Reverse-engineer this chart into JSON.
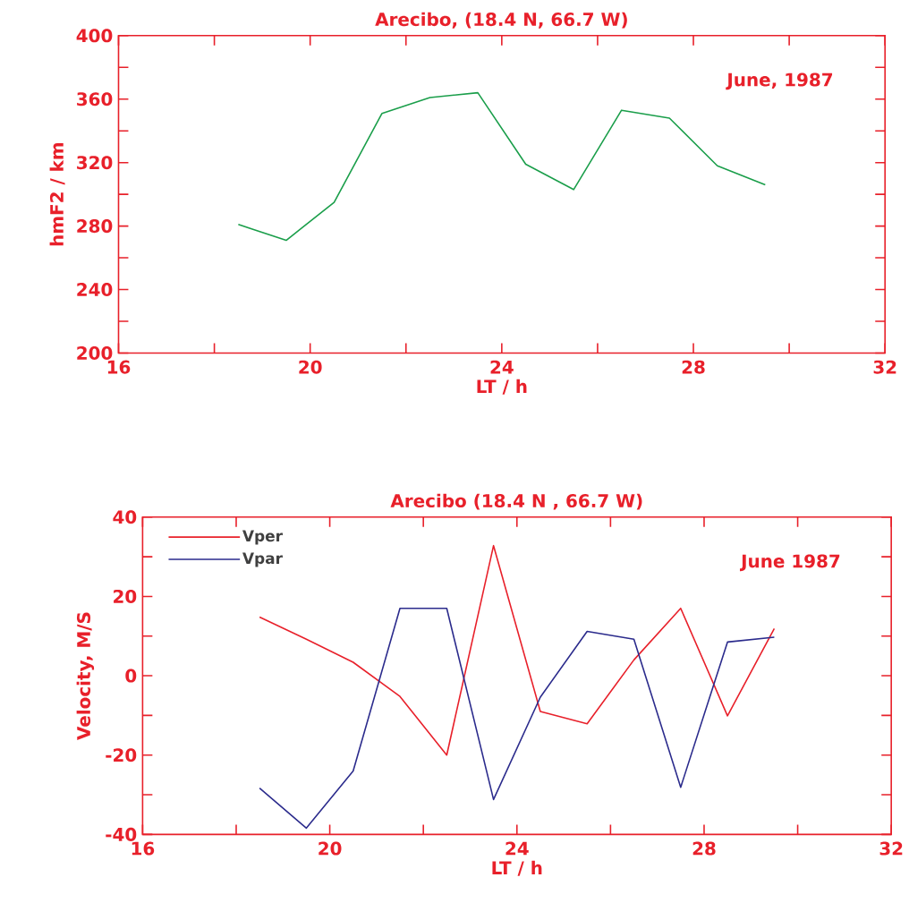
{
  "chart_data": [
    {
      "type": "line",
      "title": "Arecibo, (18.4 N, 66.7 W)",
      "xlabel": "LT / h",
      "ylabel": "hmF2 / km",
      "annotations": [
        "June, 1987"
      ],
      "x": [
        18.5,
        19.5,
        20.5,
        21.5,
        22.5,
        23.5,
        24.5,
        25.5,
        26.5,
        27.5,
        28.5,
        29.5
      ],
      "values": [
        281,
        271,
        295,
        351,
        361,
        364,
        319,
        303,
        353,
        348,
        318,
        306
      ],
      "color": "#1a9e4a",
      "xlim": [
        16,
        32
      ],
      "ylim": [
        200,
        400
      ],
      "xticks": [
        16,
        {
          "value": 18,
          "label": null
        },
        20,
        {
          "value": 22,
          "label": null
        },
        24,
        {
          "value": 26,
          "label": null
        },
        28,
        {
          "value": 30,
          "label": null
        },
        32
      ],
      "yticks": [
        200,
        {
          "value": 220,
          "label": null
        },
        240,
        {
          "value": 260,
          "label": null
        },
        280,
        {
          "value": 300,
          "label": null
        },
        320,
        {
          "value": 340,
          "label": null
        },
        360,
        {
          "value": 380,
          "label": null
        },
        400
      ]
    },
    {
      "type": "line",
      "title": "Arecibo (18.4 N , 66.7 W)",
      "xlabel": "LT / h",
      "ylabel": "Velocity, M/S",
      "annotations": [
        "June 1987"
      ],
      "x": [
        18.5,
        19.5,
        20.5,
        21.5,
        22.5,
        23.5,
        24.5,
        25.5,
        26.5,
        27.5,
        28.5,
        29.5
      ],
      "series": [
        {
          "name": "Vper",
          "color": "#e8202a",
          "values": [
            14.8,
            9.2,
            3.4,
            -5.2,
            -20,
            32.8,
            -9,
            -12.1,
            4,
            17,
            -10.1,
            11.9
          ]
        },
        {
          "name": "Vpar",
          "color": "#2b2b8c",
          "values": [
            -28.3,
            -38.4,
            -24,
            17,
            17,
            -31.2,
            -5.4,
            11.2,
            9.2,
            -28.1,
            8.5,
            9.7
          ]
        }
      ],
      "legend": "top left",
      "xlim": [
        16,
        32
      ],
      "ylim": [
        -40,
        40
      ],
      "xticks": [
        16,
        {
          "value": 18,
          "label": null
        },
        20,
        {
          "value": 22,
          "label": null
        },
        24,
        {
          "value": 26,
          "label": null
        },
        28,
        {
          "value": 30,
          "label": null
        },
        32
      ],
      "yticks": [
        -40,
        {
          "value": -30,
          "label": null
        },
        -20,
        {
          "value": -10,
          "label": null
        },
        0,
        {
          "value": 10,
          "label": null
        },
        20,
        {
          "value": 30,
          "label": null
        },
        40
      ]
    }
  ]
}
